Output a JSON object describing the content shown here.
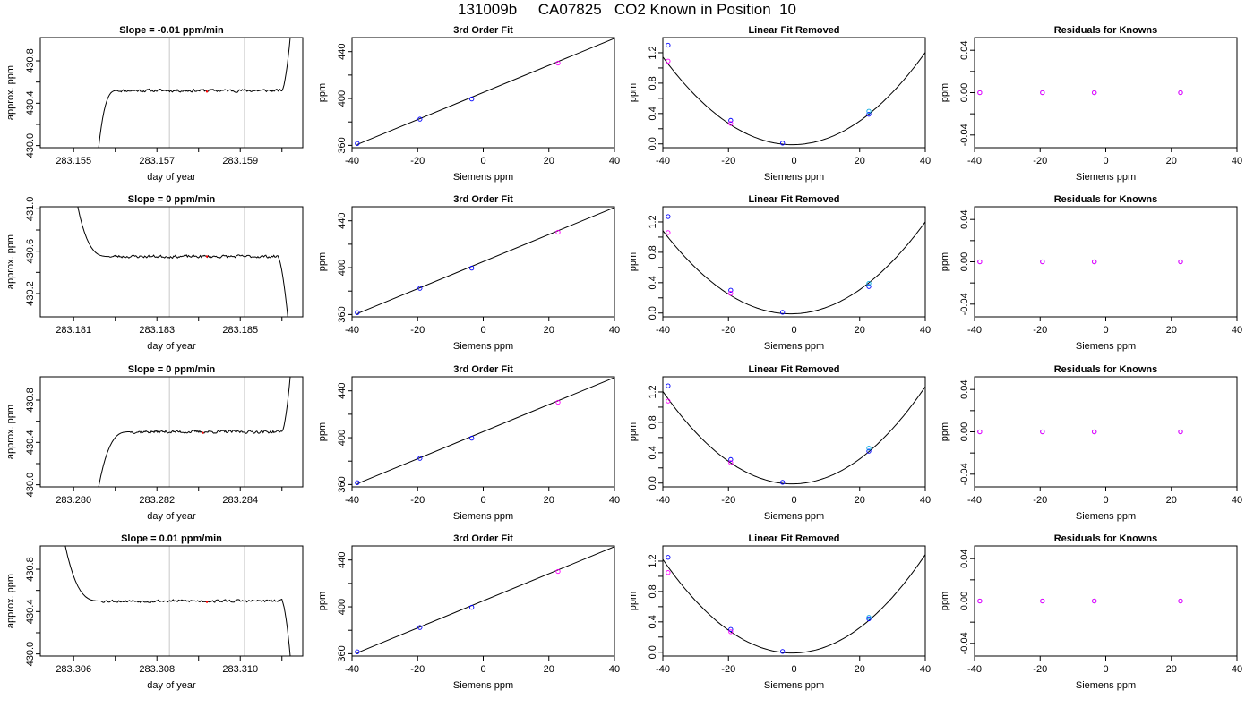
{
  "figure": {
    "title": "131009b     CA07825   CO2 Known in Position  10"
  },
  "colors": {
    "axis": "#000000",
    "trace": "#000000",
    "vline": "#c8c8c8",
    "fit_line": "#000000",
    "blue_points": "#0000ff",
    "magenta_points": "#ff00ff",
    "cyan_points": "#00a8e0",
    "red_points": "#ff0000"
  },
  "chart_data": [
    {
      "type": "line",
      "title": "Slope =  -0.01  ppm/min",
      "xlabel": "day of year",
      "ylabel": "approx. ppm",
      "xlim": [
        283.1542,
        283.1605
      ],
      "ylim": [
        429.98,
        431.02
      ],
      "xticks": [
        283.155,
        283.156,
        283.157,
        283.158,
        283.159,
        283.16
      ],
      "xtick_labels": [
        "283.155",
        "",
        "283.157",
        "",
        "283.159",
        ""
      ],
      "yticks": [
        430.0,
        430.2,
        430.4,
        430.6,
        430.8
      ],
      "ytick_labels": [
        "430.0",
        "",
        "430.4",
        "",
        "430.8"
      ],
      "vlines": [
        283.1573,
        283.1591
      ],
      "trace": {
        "shape": "rise-plateau-rise",
        "x_start": 283.1556,
        "x_settle": 283.15605,
        "x_end_plateau": 283.16,
        "y_start": 429.98,
        "plateau": 430.52,
        "y_end": 431.02,
        "noise": 0.012,
        "seed": 11
      },
      "marker": {
        "x": 283.1582,
        "y": 430.51
      }
    },
    {
      "type": "scatter",
      "title": "3rd Order Fit",
      "xlabel": "Siemens ppm",
      "ylabel": "ppm",
      "xlim": [
        -40,
        40
      ],
      "ylim": [
        358,
        452
      ],
      "xticks": [
        -40,
        -20,
        0,
        20,
        40
      ],
      "xtick_labels": [
        "-40",
        "-20",
        "0",
        "20",
        "40"
      ],
      "yticks": [
        360,
        380,
        400,
        420,
        440
      ],
      "ytick_labels": [
        "360",
        "",
        "400",
        "",
        "440"
      ],
      "fit_line": {
        "x": [
          -38.5,
          40
        ],
        "y": [
          360.6,
          451.4
        ]
      },
      "series": [
        {
          "color": "blue",
          "x": [
            -38.4,
            -19.3,
            -3.5
          ],
          "y": [
            361.6,
            382.4,
            399.6
          ]
        },
        {
          "color": "magenta",
          "x": [
            22.8
          ],
          "y": [
            430.2
          ]
        }
      ]
    },
    {
      "type": "scatter",
      "title": "Linear Fit Removed",
      "xlabel": "Siemens ppm",
      "ylabel": "ppm",
      "xlim": [
        -40,
        40
      ],
      "ylim": [
        -0.05,
        1.4
      ],
      "xticks": [
        -40,
        -20,
        0,
        20,
        40
      ],
      "xtick_labels": [
        "-40",
        "-20",
        "0",
        "20",
        "40"
      ],
      "yticks": [
        0.0,
        0.2,
        0.4,
        0.6,
        0.8,
        1.0,
        1.2
      ],
      "ytick_labels": [
        "0.0",
        "",
        "0.4",
        "",
        "0.8",
        "",
        "1.2"
      ],
      "curve": {
        "a": 0.00074,
        "x0": -0.5,
        "c": -0.01
      },
      "series": [
        {
          "color": "blue",
          "x": [
            -38.4,
            -19.3,
            -3.5,
            22.8
          ],
          "y": [
            1.3,
            0.31,
            0.01,
            0.39
          ]
        },
        {
          "color": "magenta",
          "x": [
            -38.4,
            -19.3
          ],
          "y": [
            1.09,
            0.27
          ]
        },
        {
          "color": "cyan",
          "x": [
            22.8
          ],
          "y": [
            0.43
          ]
        }
      ]
    },
    {
      "type": "scatter",
      "title": "Residuals for Knowns",
      "xlabel": "Siemens ppm",
      "ylabel": "ppm",
      "xlim": [
        -40,
        40
      ],
      "ylim": [
        -0.052,
        0.052
      ],
      "xticks": [
        -40,
        -20,
        0,
        20,
        40
      ],
      "xtick_labels": [
        "-40",
        "-20",
        "0",
        "20",
        "40"
      ],
      "yticks": [
        -0.04,
        -0.02,
        0.0,
        0.02,
        0.04
      ],
      "ytick_labels": [
        "-0.04",
        "",
        "0.00",
        "",
        "0.04"
      ],
      "series": [
        {
          "color": "blue",
          "x": [
            -38.4,
            -19.3,
            -3.5,
            22.8
          ],
          "y": [
            0,
            0,
            0,
            0
          ]
        },
        {
          "color": "magenta",
          "x": [
            -38.4,
            -19.3,
            -3.5,
            22.8
          ],
          "y": [
            0,
            0,
            0,
            0
          ]
        }
      ]
    },
    {
      "type": "line",
      "title": "Slope =  0  ppm/min",
      "xlabel": "day of year",
      "ylabel": "approx. ppm",
      "xlim": [
        283.1802,
        283.1865
      ],
      "ylim": [
        429.98,
        431.02
      ],
      "xticks": [
        283.181,
        283.182,
        283.183,
        283.184,
        283.185,
        283.186
      ],
      "xtick_labels": [
        "283.181",
        "",
        "283.183",
        "",
        "283.185",
        ""
      ],
      "yticks": [
        430.2,
        430.4,
        430.6,
        430.8,
        431.0
      ],
      "ytick_labels": [
        "430.2",
        "",
        "430.6",
        "",
        "431.0"
      ],
      "vlines": [
        283.1833,
        283.1851
      ],
      "trace": {
        "shape": "fall-plateau-fall",
        "x_start": 283.1811,
        "x_settle": 283.18185,
        "x_end_plateau": 283.1859,
        "y_start": 431.02,
        "plateau": 430.55,
        "y_end": 429.98,
        "noise": 0.012,
        "seed": 23
      },
      "marker": {
        "x": 283.1842,
        "y": 430.55
      }
    },
    {
      "type": "scatter",
      "title": "3rd Order Fit",
      "xlabel": "Siemens ppm",
      "ylabel": "ppm",
      "xlim": [
        -40,
        40
      ],
      "ylim": [
        358,
        452
      ],
      "xticks": [
        -40,
        -20,
        0,
        20,
        40
      ],
      "xtick_labels": [
        "-40",
        "-20",
        "0",
        "20",
        "40"
      ],
      "yticks": [
        360,
        380,
        400,
        420,
        440
      ],
      "ytick_labels": [
        "360",
        "",
        "400",
        "",
        "440"
      ],
      "fit_line": {
        "x": [
          -38.5,
          40
        ],
        "y": [
          360.6,
          451.4
        ]
      },
      "series": [
        {
          "color": "blue",
          "x": [
            -38.4,
            -19.3,
            -3.5
          ],
          "y": [
            361.6,
            382.4,
            399.6
          ]
        },
        {
          "color": "magenta",
          "x": [
            22.8
          ],
          "y": [
            430.2
          ]
        }
      ]
    },
    {
      "type": "scatter",
      "title": "Linear Fit Removed",
      "xlabel": "Siemens ppm",
      "ylabel": "ppm",
      "xlim": [
        -40,
        40
      ],
      "ylim": [
        -0.05,
        1.4
      ],
      "xticks": [
        -40,
        -20,
        0,
        20,
        40
      ],
      "xtick_labels": [
        "-40",
        "-20",
        "0",
        "20",
        "40"
      ],
      "yticks": [
        0.0,
        0.2,
        0.4,
        0.6,
        0.8,
        1.0,
        1.2
      ],
      "ytick_labels": [
        "0.0",
        "",
        "0.4",
        "",
        "0.8",
        "",
        "1.2"
      ],
      "curve": {
        "a": 0.00072,
        "x0": -1.0,
        "c": -0.01
      },
      "series": [
        {
          "color": "blue",
          "x": [
            -38.4,
            -19.3,
            -3.5,
            22.8
          ],
          "y": [
            1.27,
            0.3,
            0.01,
            0.35
          ]
        },
        {
          "color": "magenta",
          "x": [
            -38.4,
            -19.3
          ],
          "y": [
            1.06,
            0.26
          ]
        },
        {
          "color": "cyan",
          "x": [
            22.8
          ],
          "y": [
            0.39
          ]
        }
      ]
    },
    {
      "type": "scatter",
      "title": "Residuals for Knowns",
      "xlabel": "Siemens ppm",
      "ylabel": "ppm",
      "xlim": [
        -40,
        40
      ],
      "ylim": [
        -0.052,
        0.052
      ],
      "xticks": [
        -40,
        -20,
        0,
        20,
        40
      ],
      "xtick_labels": [
        "-40",
        "-20",
        "0",
        "20",
        "40"
      ],
      "yticks": [
        -0.04,
        -0.02,
        0.0,
        0.02,
        0.04
      ],
      "ytick_labels": [
        "-0.04",
        "",
        "0.00",
        "",
        "0.04"
      ],
      "series": [
        {
          "color": "blue",
          "x": [
            -38.4,
            -19.3,
            -3.5,
            22.8
          ],
          "y": [
            0,
            0,
            0,
            0
          ]
        },
        {
          "color": "magenta",
          "x": [
            -38.4,
            -19.3,
            -3.5,
            22.8
          ],
          "y": [
            0,
            0,
            0,
            0
          ]
        }
      ]
    },
    {
      "type": "line",
      "title": "Slope =  0  ppm/min",
      "xlabel": "day of year",
      "ylabel": "approx. ppm",
      "xlim": [
        283.2792,
        283.2855
      ],
      "ylim": [
        429.98,
        431.02
      ],
      "xticks": [
        283.28,
        283.281,
        283.282,
        283.283,
        283.284,
        283.285
      ],
      "xtick_labels": [
        "283.280",
        "",
        "283.282",
        "",
        "283.284",
        ""
      ],
      "yticks": [
        430.0,
        430.2,
        430.4,
        430.6,
        430.8
      ],
      "ytick_labels": [
        "430.0",
        "",
        "430.4",
        "",
        "430.8"
      ],
      "vlines": [
        283.2823,
        283.2841
      ],
      "trace": {
        "shape": "rise-plateau-rise",
        "x_start": 283.2806,
        "x_settle": 283.28135,
        "x_end_plateau": 283.285,
        "y_start": 429.98,
        "plateau": 430.5,
        "y_end": 431.02,
        "noise": 0.012,
        "seed": 37
      },
      "marker": {
        "x": 283.2831,
        "y": 430.49
      }
    },
    {
      "type": "scatter",
      "title": "3rd Order Fit",
      "xlabel": "Siemens ppm",
      "ylabel": "ppm",
      "xlim": [
        -40,
        40
      ],
      "ylim": [
        358,
        452
      ],
      "xticks": [
        -40,
        -20,
        0,
        20,
        40
      ],
      "xtick_labels": [
        "-40",
        "-20",
        "0",
        "20",
        "40"
      ],
      "yticks": [
        360,
        380,
        400,
        420,
        440
      ],
      "ytick_labels": [
        "360",
        "",
        "400",
        "",
        "440"
      ],
      "fit_line": {
        "x": [
          -38.5,
          40
        ],
        "y": [
          360.6,
          451.4
        ]
      },
      "series": [
        {
          "color": "blue",
          "x": [
            -38.4,
            -19.3,
            -3.5
          ],
          "y": [
            361.6,
            382.4,
            399.6
          ]
        },
        {
          "color": "magenta",
          "x": [
            22.8
          ],
          "y": [
            430.2
          ]
        }
      ]
    },
    {
      "type": "scatter",
      "title": "Linear Fit Removed",
      "xlabel": "Siemens ppm",
      "ylabel": "ppm",
      "xlim": [
        -40,
        40
      ],
      "ylim": [
        -0.05,
        1.4
      ],
      "xticks": [
        -40,
        -20,
        0,
        20,
        40
      ],
      "xtick_labels": [
        "-40",
        "-20",
        "0",
        "20",
        "40"
      ],
      "yticks": [
        0.0,
        0.2,
        0.4,
        0.6,
        0.8,
        1.0,
        1.2
      ],
      "ytick_labels": [
        "0.0",
        "",
        "0.4",
        "",
        "0.8",
        "",
        "1.2"
      ],
      "curve": {
        "a": 0.00078,
        "x0": -0.5,
        "c": -0.01
      },
      "series": [
        {
          "color": "blue",
          "x": [
            -38.4,
            -19.3,
            -3.5,
            22.8
          ],
          "y": [
            1.28,
            0.31,
            0.01,
            0.42
          ]
        },
        {
          "color": "magenta",
          "x": [
            -38.4,
            -19.3
          ],
          "y": [
            1.08,
            0.27
          ]
        },
        {
          "color": "cyan",
          "x": [
            22.8
          ],
          "y": [
            0.46
          ]
        }
      ]
    },
    {
      "type": "scatter",
      "title": "Residuals for Knowns",
      "xlabel": "Siemens ppm",
      "ylabel": "ppm",
      "xlim": [
        -40,
        40
      ],
      "ylim": [
        -0.052,
        0.052
      ],
      "xticks": [
        -40,
        -20,
        0,
        20,
        40
      ],
      "xtick_labels": [
        "-40",
        "-20",
        "0",
        "20",
        "40"
      ],
      "yticks": [
        -0.04,
        -0.02,
        0.0,
        0.02,
        0.04
      ],
      "ytick_labels": [
        "-0.04",
        "",
        "0.00",
        "",
        "0.04"
      ],
      "series": [
        {
          "color": "blue",
          "x": [
            -38.4,
            -19.3,
            -3.5,
            22.8
          ],
          "y": [
            0,
            0,
            0,
            0
          ]
        },
        {
          "color": "magenta",
          "x": [
            -38.4,
            -19.3,
            -3.5,
            22.8
          ],
          "y": [
            0,
            0,
            0,
            0
          ]
        }
      ]
    },
    {
      "type": "line",
      "title": "Slope =  0.01  ppm/min",
      "xlabel": "day of year",
      "ylabel": "approx. ppm",
      "xlim": [
        283.3052,
        283.3115
      ],
      "ylim": [
        429.98,
        431.02
      ],
      "xticks": [
        283.306,
        283.307,
        283.308,
        283.309,
        283.31,
        283.311
      ],
      "xtick_labels": [
        "283.306",
        "",
        "283.308",
        "",
        "283.310",
        ""
      ],
      "yticks": [
        430.0,
        430.2,
        430.4,
        430.6,
        430.8
      ],
      "ytick_labels": [
        "430.0",
        "",
        "430.4",
        "",
        "430.8"
      ],
      "vlines": [
        283.3083,
        283.3101
      ],
      "trace": {
        "shape": "fall-plateau-fall",
        "x_start": 283.3058,
        "x_settle": 283.30665,
        "x_end_plateau": 283.311,
        "y_start": 431.02,
        "plateau": 430.5,
        "y_end": 429.98,
        "noise": 0.012,
        "seed": 53
      },
      "marker": {
        "x": 283.3092,
        "y": 430.49
      }
    },
    {
      "type": "scatter",
      "title": "3rd Order Fit",
      "xlabel": "Siemens ppm",
      "ylabel": "ppm",
      "xlim": [
        -40,
        40
      ],
      "ylim": [
        358,
        452
      ],
      "xticks": [
        -40,
        -20,
        0,
        20,
        40
      ],
      "xtick_labels": [
        "-40",
        "-20",
        "0",
        "20",
        "40"
      ],
      "yticks": [
        360,
        380,
        400,
        420,
        440
      ],
      "ytick_labels": [
        "360",
        "",
        "400",
        "",
        "440"
      ],
      "fit_line": {
        "x": [
          -38.5,
          40
        ],
        "y": [
          360.6,
          451.4
        ]
      },
      "series": [
        {
          "color": "blue",
          "x": [
            -38.4,
            -19.3,
            -3.5
          ],
          "y": [
            361.6,
            382.4,
            399.6
          ]
        },
        {
          "color": "magenta",
          "x": [
            22.8
          ],
          "y": [
            430.2
          ]
        }
      ]
    },
    {
      "type": "scatter",
      "title": "Linear Fit Removed",
      "xlabel": "Siemens ppm",
      "ylabel": "ppm",
      "xlim": [
        -40,
        40
      ],
      "ylim": [
        -0.05,
        1.4
      ],
      "xticks": [
        -40,
        -20,
        0,
        20,
        40
      ],
      "xtick_labels": [
        "-40",
        "-20",
        "0",
        "20",
        "40"
      ],
      "yticks": [
        0.0,
        0.2,
        0.4,
        0.6,
        0.8,
        1.0,
        1.2
      ],
      "ytick_labels": [
        "0.0",
        "",
        "0.4",
        "",
        "0.8",
        "",
        "1.2"
      ],
      "curve": {
        "a": 0.00079,
        "x0": -0.5,
        "c": -0.01
      },
      "series": [
        {
          "color": "blue",
          "x": [
            -38.4,
            -19.3,
            -3.5,
            22.8
          ],
          "y": [
            1.25,
            0.3,
            0.01,
            0.44
          ]
        },
        {
          "color": "magenta",
          "x": [
            -38.4,
            -19.3
          ],
          "y": [
            1.05,
            0.27
          ]
        },
        {
          "color": "cyan",
          "x": [
            22.8
          ],
          "y": [
            0.46
          ]
        }
      ]
    },
    {
      "type": "scatter",
      "title": "Residuals for Knowns",
      "xlabel": "Siemens ppm",
      "ylabel": "ppm",
      "xlim": [
        -40,
        40
      ],
      "ylim": [
        -0.052,
        0.052
      ],
      "xticks": [
        -40,
        -20,
        0,
        20,
        40
      ],
      "xtick_labels": [
        "-40",
        "-20",
        "0",
        "20",
        "40"
      ],
      "yticks": [
        -0.04,
        -0.02,
        0.0,
        0.02,
        0.04
      ],
      "ytick_labels": [
        "-0.04",
        "",
        "0.00",
        "",
        "0.04"
      ],
      "series": [
        {
          "color": "blue",
          "x": [
            -38.4,
            -19.3,
            -3.5,
            22.8
          ],
          "y": [
            0,
            0,
            0,
            0
          ]
        },
        {
          "color": "magenta",
          "x": [
            -38.4,
            -19.3,
            -3.5,
            22.8
          ],
          "y": [
            0,
            0,
            0,
            0
          ]
        }
      ]
    }
  ]
}
